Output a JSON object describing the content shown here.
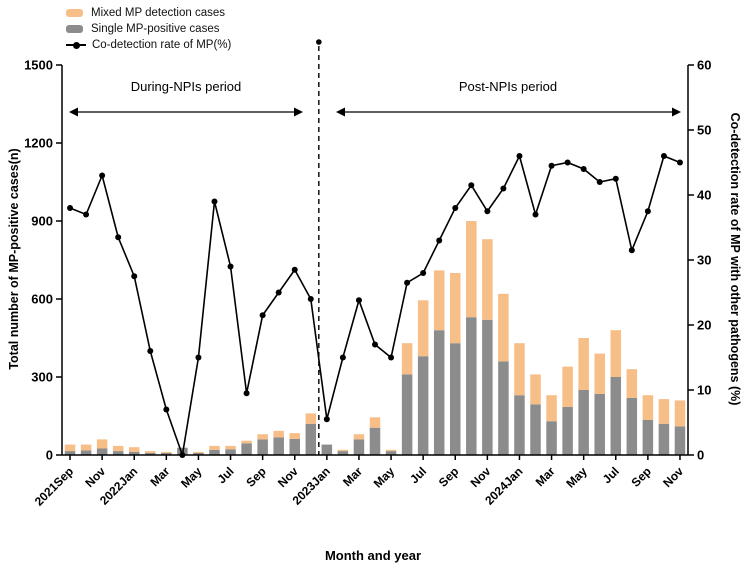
{
  "legend": {
    "mixed_label": "Mixed MP detection cases",
    "single_label": "Single MP-positive cases",
    "rate_label": "Co-detection rate of MP(%)"
  },
  "chart_data": {
    "type": "bar+line",
    "title": "",
    "x": [
      "2021Sep",
      "2021Oct",
      "2021Nov",
      "2021Dec",
      "2022Jan",
      "2022Feb",
      "2022Mar",
      "2022Apr",
      "2022May",
      "2022Jun",
      "2022Jul",
      "2022Aug",
      "2022Sep",
      "2022Oct",
      "2022Nov",
      "2022Dec",
      "2023Jan",
      "2023Feb",
      "2023Mar",
      "2023Apr",
      "2023May",
      "2023Jun",
      "2023Jul",
      "2023Aug",
      "2023Sep",
      "2023Oct",
      "2023Nov",
      "2023Dec",
      "2024Jan",
      "2024Feb",
      "2024Mar",
      "2024Apr",
      "2024May",
      "2024Jun",
      "2024Jul",
      "2024Aug",
      "2024Sep",
      "2024Oct",
      "2024Nov"
    ],
    "series": [
      {
        "name": "Single MP-positive cases",
        "type": "bar",
        "stack": true,
        "axis": "left",
        "color": "#8c8c8c",
        "values": [
          15,
          18,
          25,
          15,
          12,
          8,
          8,
          28,
          8,
          20,
          22,
          45,
          60,
          68,
          62,
          120,
          40,
          15,
          60,
          105,
          15,
          310,
          380,
          480,
          430,
          530,
          520,
          360,
          230,
          195,
          130,
          185,
          250,
          235,
          300,
          220,
          135,
          120,
          110
        ]
      },
      {
        "name": "Mixed MP detection cases",
        "type": "bar",
        "stack": true,
        "axis": "left",
        "color": "#f7be87",
        "values": [
          25,
          22,
          35,
          20,
          18,
          7,
          4,
          0,
          4,
          15,
          13,
          10,
          20,
          25,
          22,
          40,
          0,
          5,
          20,
          40,
          5,
          120,
          215,
          230,
          270,
          370,
          310,
          260,
          200,
          115,
          100,
          155,
          200,
          155,
          180,
          110,
          95,
          95,
          100
        ]
      },
      {
        "name": "Co-detection rate of MP(%)",
        "type": "line",
        "axis": "right",
        "color": "#000000",
        "values": [
          38,
          37,
          43,
          33.5,
          27.5,
          16,
          7,
          0,
          15,
          39,
          29,
          9.5,
          21.5,
          25,
          28.5,
          24,
          5.5,
          15,
          23.8,
          17,
          15,
          26.5,
          28,
          33,
          38,
          41.5,
          37.5,
          41,
          46,
          37,
          44.5,
          45,
          44,
          42,
          42.5,
          31.5,
          37.5,
          46,
          45
        ]
      }
    ],
    "left_axis": {
      "label": "Total number of  MP-positive cases(n)",
      "ticks": [
        0,
        300,
        600,
        900,
        1200,
        1500
      ],
      "range": [
        0,
        1500
      ]
    },
    "right_axis": {
      "label": "Co-detection rate of MP with other pathogens (%)",
      "ticks": [
        0,
        10,
        20,
        30,
        40,
        50,
        60
      ],
      "range": [
        0,
        60
      ]
    },
    "x_axis": {
      "label": "Month and year",
      "tick_every": 2,
      "tick_labels": [
        "2021Sep",
        "Nov",
        "2022Jan",
        "Mar",
        "May",
        "Jul",
        "Sep",
        "Nov",
        "2023Jan",
        "Mar",
        "May",
        "Jul",
        "Sep",
        "Nov",
        "2024Jan",
        "Mar",
        "May",
        "Jul",
        "Sep",
        "Nov"
      ]
    },
    "annotations": {
      "during": "During-NPIs period",
      "post": "Post-NPIs period",
      "divider_after_index": 15.5
    },
    "grid": false,
    "legend_position": "top-left"
  }
}
